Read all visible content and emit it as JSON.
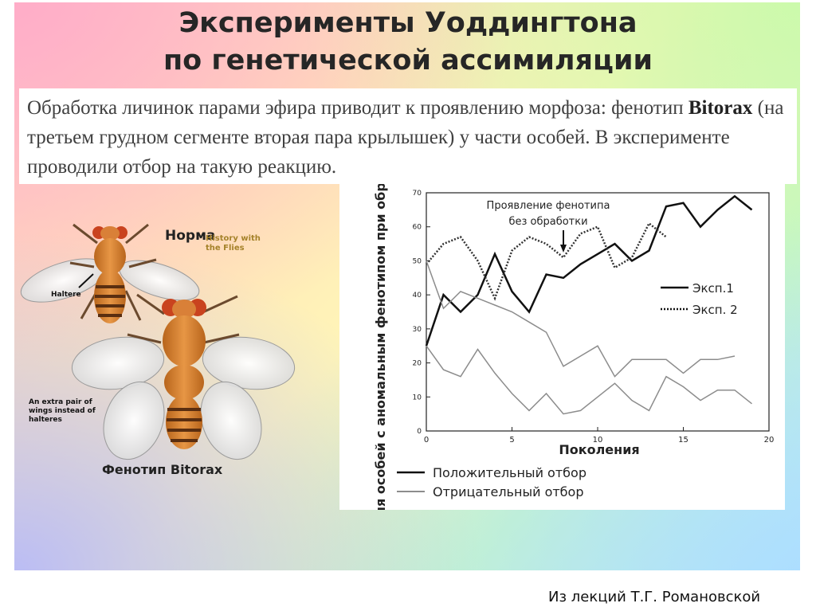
{
  "slide": {
    "title_line1": "Эксперименты Уоддингтона",
    "title_line2": "по генетической ассимиляции",
    "intro_part1": "Обработка личинок парами эфира  приводит к проявлению морфоза: фенотип ",
    "intro_bold": "Bitorax",
    "intro_part2": " (на третьем грудном сегменте вторая пара крылышек) у части особей. В эксперименте проводили отбор на такую реакцию.",
    "credit": "Из лекций Т.Г. Романовской"
  },
  "figure": {
    "norm_label": "Норма",
    "history_text": "History with the Flies",
    "haltere_label": "Haltere",
    "extra_wings_label": "An extra pair of wings instead of halteres",
    "bitorax_label": "Фенотип Bitorax"
  },
  "chart_data": {
    "type": "line",
    "xlabel": "Поколения",
    "ylabel": "Доля особей с аномальным фенотипом при обработке (%)",
    "xlim": [
      0,
      20
    ],
    "ylim": [
      0,
      70
    ],
    "xticks": [
      0,
      5,
      10,
      15,
      20
    ],
    "yticks": [
      0,
      10,
      20,
      30,
      40,
      50,
      60,
      70
    ],
    "annotation": "Проявление фенотипа без обработки",
    "annotation_target_generation": 8,
    "legend_exp": [
      "Эксп.1",
      "Эксп. 2"
    ],
    "legend_selection": [
      "Положительный отбор",
      "Отрицательный отбор"
    ],
    "series": [
      {
        "name": "Эксп.1",
        "selection": "Положительный отбор",
        "x": [
          0,
          1,
          2,
          3,
          4,
          5,
          6,
          7,
          8,
          9,
          10,
          11,
          12,
          13,
          14,
          15,
          16,
          17,
          18,
          19
        ],
        "y": [
          25,
          40,
          35,
          40,
          52,
          41,
          35,
          46,
          45,
          49,
          52,
          55,
          50,
          53,
          66,
          67,
          60,
          65,
          69,
          65
        ]
      },
      {
        "name": "Эксп. 2",
        "selection": "Положительный отбор",
        "x": [
          0,
          1,
          2,
          3,
          4,
          5,
          6,
          7,
          8,
          9,
          10,
          11,
          12,
          13,
          14
        ],
        "y": [
          49,
          55,
          57,
          50,
          39,
          53,
          57,
          55,
          51,
          58,
          60,
          48,
          51,
          61,
          57
        ]
      },
      {
        "name": "Эксп.1",
        "selection": "Отрицательный отбор",
        "x": [
          0,
          1,
          2,
          3,
          4,
          5,
          6,
          7,
          8,
          9,
          10,
          11,
          12,
          13,
          14,
          15,
          16,
          17,
          18,
          19
        ],
        "y": [
          25,
          18,
          16,
          24,
          17,
          11,
          6,
          11,
          5,
          6,
          10,
          14,
          9,
          6,
          16,
          13,
          9,
          12,
          12,
          8
        ]
      },
      {
        "name": "Эксп. 2",
        "selection": "Отрицательный отбор",
        "x": [
          0,
          1,
          2,
          3,
          4,
          5,
          6,
          7,
          8,
          9,
          10,
          11,
          12,
          13,
          14,
          15,
          16,
          17,
          18
        ],
        "y": [
          50,
          36,
          41,
          39,
          37,
          35,
          32,
          29,
          19,
          22,
          25,
          16,
          21,
          21,
          21,
          17,
          21,
          21,
          22
        ]
      }
    ]
  }
}
